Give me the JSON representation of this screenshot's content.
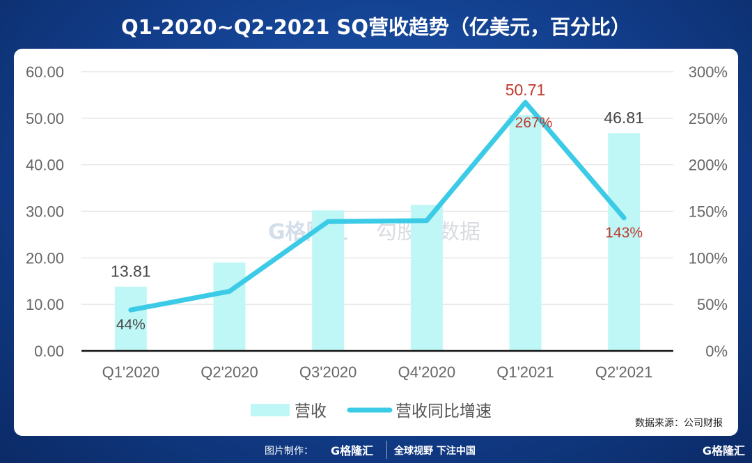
{
  "title": "Q1-2020~Q2-2021 SQ营收趋势（亿美元，百分比）",
  "source": "数据来源：公司财报",
  "footer": {
    "maker": "图片制作：",
    "logo": "G格隆汇",
    "slogan": "全球视野 下注中国",
    "logo_right": "G格隆汇"
  },
  "watermark": {
    "left": "G格隆汇",
    "right": "勾股大数据"
  },
  "chart_data": {
    "type": "bar+line",
    "categories": [
      "Q1'2020",
      "Q2'2020",
      "Q3'2020",
      "Q4'2020",
      "Q1'2021",
      "Q2'2021"
    ],
    "series": [
      {
        "name": "营收",
        "type": "bar",
        "axis": "left",
        "color": "#bff7f7",
        "values": [
          13.81,
          19.0,
          30.2,
          31.4,
          50.71,
          46.81
        ],
        "labels": [
          "13.81",
          "",
          "",
          "",
          "50.71",
          "46.81"
        ]
      },
      {
        "name": "营收同比增速",
        "type": "line",
        "axis": "right",
        "color": "#3ccbe6",
        "values": [
          44,
          64,
          139,
          140,
          267,
          143
        ],
        "labels": [
          "44%",
          "",
          "",
          "",
          "267%",
          "143%"
        ]
      }
    ],
    "left_axis": {
      "ylim": [
        0,
        60
      ],
      "ticks": [
        "0.00",
        "10.00",
        "20.00",
        "30.00",
        "40.00",
        "50.00",
        "60.00"
      ]
    },
    "right_axis": {
      "ylim": [
        0,
        300
      ],
      "ticks": [
        "0%",
        "50%",
        "100%",
        "150%",
        "200%",
        "250%",
        "300%"
      ]
    },
    "grid": true,
    "legend": "bottom",
    "label_colors": {
      "normal": "#444444",
      "highlight": "#c0392b"
    }
  }
}
